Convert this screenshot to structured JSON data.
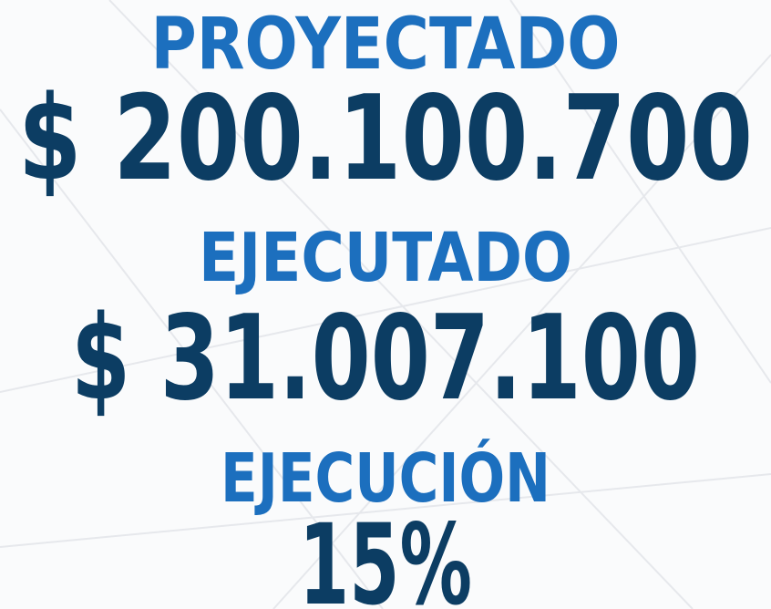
{
  "items": [
    {
      "label": "PROYECTADO",
      "value": "$ 200.100.700"
    },
    {
      "label": "EJECUTADO",
      "value": "$ 31.007.100"
    },
    {
      "label": "EJECUCIÓN",
      "value": "15%"
    }
  ]
}
